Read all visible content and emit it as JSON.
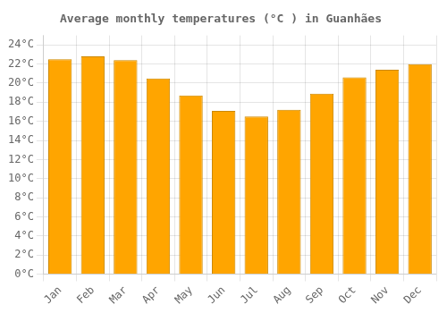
{
  "chart_data": {
    "type": "bar",
    "title": "Average monthly temperatures (°C ) in Guanhães",
    "categories": [
      "Jan",
      "Feb",
      "Mar",
      "Apr",
      "May",
      "Jun",
      "Jul",
      "Aug",
      "Sep",
      "Oct",
      "Nov",
      "Dec"
    ],
    "values": [
      22.5,
      22.8,
      22.4,
      20.5,
      18.7,
      17.1,
      16.5,
      17.2,
      18.9,
      20.6,
      21.4,
      22.0
    ],
    "color": "#FFA500",
    "ylim": [
      0,
      25
    ],
    "yticks": [
      {
        "value": 0,
        "label": "0°C"
      },
      {
        "value": 2,
        "label": "2°C"
      },
      {
        "value": 4,
        "label": "4°C"
      },
      {
        "value": 6,
        "label": "6°C"
      },
      {
        "value": 8,
        "label": "8°C"
      },
      {
        "value": 10,
        "label": "10°C"
      },
      {
        "value": 12,
        "label": "12°C"
      },
      {
        "value": 14,
        "label": "14°C"
      },
      {
        "value": 16,
        "label": "16°C"
      },
      {
        "value": 18,
        "label": "18°C"
      },
      {
        "value": 20,
        "label": "20°C"
      },
      {
        "value": 22,
        "label": "22°C"
      },
      {
        "value": 24,
        "label": "24°C"
      }
    ],
    "grid": true
  }
}
